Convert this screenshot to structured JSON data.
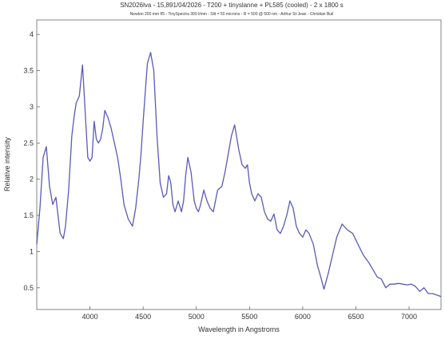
{
  "chart_data": {
    "type": "line",
    "title": "SN2026lva - 15,891/04/2026 - T200 + tinyslanne + PL585 (cooled) - 2 x 1800 s",
    "subtitle": "Newton 200 mm f/5 - TinySpectra 300 l/mm - Slit = 50 microns - R = 500 @ 500 nm - Arthur St-Jean - Christian Buil",
    "xlabel": "Wavelength in Angstroms",
    "ylabel": "Relative intensity",
    "xlim": [
      3500,
      7300
    ],
    "ylim": [
      0.2,
      4.2
    ],
    "xticks": [
      4000,
      4500,
      5000,
      5500,
      6000,
      6500,
      7000
    ],
    "yticks": [
      0.5,
      1,
      1.5,
      2,
      2.5,
      3,
      3.5,
      4
    ],
    "grid": false,
    "line_color": "#5a5ab8",
    "series": [
      {
        "name": "",
        "x": [
          3500,
          3530,
          3560,
          3590,
          3620,
          3650,
          3680,
          3700,
          3720,
          3750,
          3770,
          3800,
          3830,
          3850,
          3870,
          3900,
          3930,
          3960,
          3980,
          4000,
          4020,
          4040,
          4060,
          4080,
          4100,
          4120,
          4140,
          4170,
          4200,
          4230,
          4260,
          4290,
          4320,
          4360,
          4400,
          4430,
          4460,
          4480,
          4500,
          4520,
          4540,
          4570,
          4600,
          4630,
          4660,
          4690,
          4720,
          4740,
          4760,
          4780,
          4800,
          4830,
          4860,
          4880,
          4900,
          4920,
          4950,
          4980,
          5000,
          5020,
          5040,
          5070,
          5100,
          5130,
          5160,
          5200,
          5240,
          5270,
          5300,
          5330,
          5360,
          5400,
          5430,
          5460,
          5480,
          5500,
          5520,
          5550,
          5580,
          5610,
          5640,
          5670,
          5700,
          5730,
          5760,
          5790,
          5820,
          5850,
          5880,
          5910,
          5940,
          5970,
          6000,
          6030,
          6060,
          6100,
          6140,
          6170,
          6200,
          6240,
          6280,
          6320,
          6370,
          6420,
          6470,
          6520,
          6570,
          6620,
          6660,
          6700,
          6740,
          6780,
          6820,
          6860,
          6900,
          6940,
          6980,
          7020,
          7060,
          7100,
          7140,
          7180,
          7220,
          7260,
          7300
        ],
        "y": [
          1.1,
          1.6,
          2.3,
          2.45,
          1.9,
          1.65,
          1.75,
          1.5,
          1.25,
          1.18,
          1.35,
          1.85,
          2.6,
          2.85,
          3.05,
          3.15,
          3.58,
          2.8,
          2.3,
          2.25,
          2.3,
          2.8,
          2.55,
          2.5,
          2.55,
          2.7,
          2.95,
          2.85,
          2.7,
          2.5,
          2.3,
          2.0,
          1.65,
          1.45,
          1.35,
          1.6,
          2.0,
          2.35,
          2.8,
          3.2,
          3.6,
          3.75,
          3.5,
          2.6,
          1.95,
          1.75,
          1.8,
          2.05,
          1.95,
          1.65,
          1.55,
          1.7,
          1.55,
          1.7,
          2.05,
          2.3,
          2.1,
          1.7,
          1.6,
          1.55,
          1.65,
          1.85,
          1.7,
          1.6,
          1.55,
          1.85,
          1.9,
          2.1,
          2.35,
          2.6,
          2.75,
          2.4,
          2.2,
          2.15,
          2.2,
          1.95,
          1.8,
          1.7,
          1.8,
          1.75,
          1.55,
          1.45,
          1.42,
          1.52,
          1.3,
          1.25,
          1.35,
          1.5,
          1.7,
          1.6,
          1.35,
          1.25,
          1.2,
          1.3,
          1.25,
          1.1,
          0.8,
          0.65,
          0.48,
          0.7,
          0.95,
          1.2,
          1.38,
          1.3,
          1.25,
          1.1,
          0.95,
          0.85,
          0.75,
          0.65,
          0.62,
          0.5,
          0.55,
          0.55,
          0.56,
          0.55,
          0.54,
          0.55,
          0.52,
          0.45,
          0.5,
          0.42,
          0.42,
          0.4,
          0.38
        ]
      }
    ]
  }
}
